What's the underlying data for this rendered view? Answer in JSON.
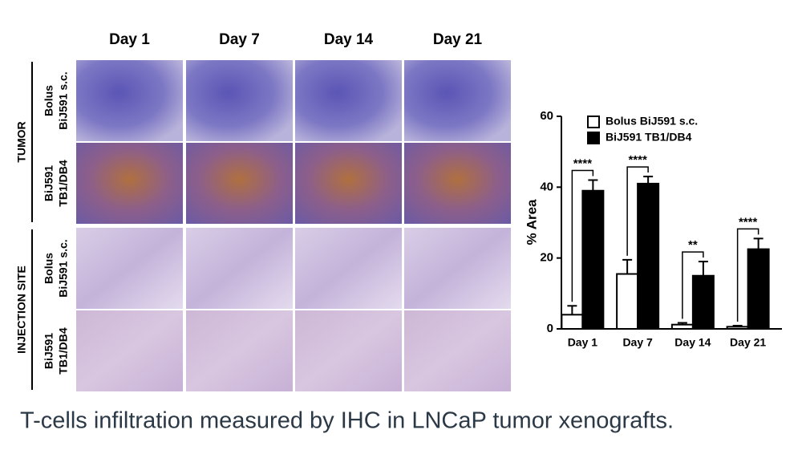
{
  "figure": {
    "columns": [
      "Day 1",
      "Day 7",
      "Day 14",
      "Day 21"
    ],
    "groups": [
      {
        "label": "TUMOR",
        "rows": [
          [
            "Bolus",
            "BiJ591 s.c."
          ],
          [
            "BiJ591",
            "TB1/DB4"
          ]
        ]
      },
      {
        "label": "INJECTION SITE",
        "rows": [
          [
            "Bolus",
            "BiJ591 s.c."
          ],
          [
            "BiJ591",
            "TB1/DB4"
          ]
        ]
      }
    ]
  },
  "caption": "T-cells infiltration measured by IHC in LNCaP tumor xenografts.",
  "chart_data": {
    "type": "bar",
    "ylabel": "% Area",
    "categories": [
      "Day 1",
      "Day 7",
      "Day 14",
      "Day 21"
    ],
    "series": [
      {
        "name": "Bolus BiJ591 s.c.",
        "color": "#ffffff",
        "values": [
          4,
          15.5,
          1.2,
          0.6
        ],
        "errors": [
          2.5,
          4,
          0.5,
          0.3
        ]
      },
      {
        "name": "BiJ591 TB1/DB4",
        "color": "#000000",
        "values": [
          39,
          41,
          15,
          22.5
        ],
        "errors": [
          3,
          2,
          4,
          3
        ]
      }
    ],
    "annotations": [
      "****",
      "****",
      "**",
      "****"
    ],
    "ylim": [
      0,
      60
    ],
    "yticks": [
      0,
      20,
      40,
      60
    ]
  }
}
